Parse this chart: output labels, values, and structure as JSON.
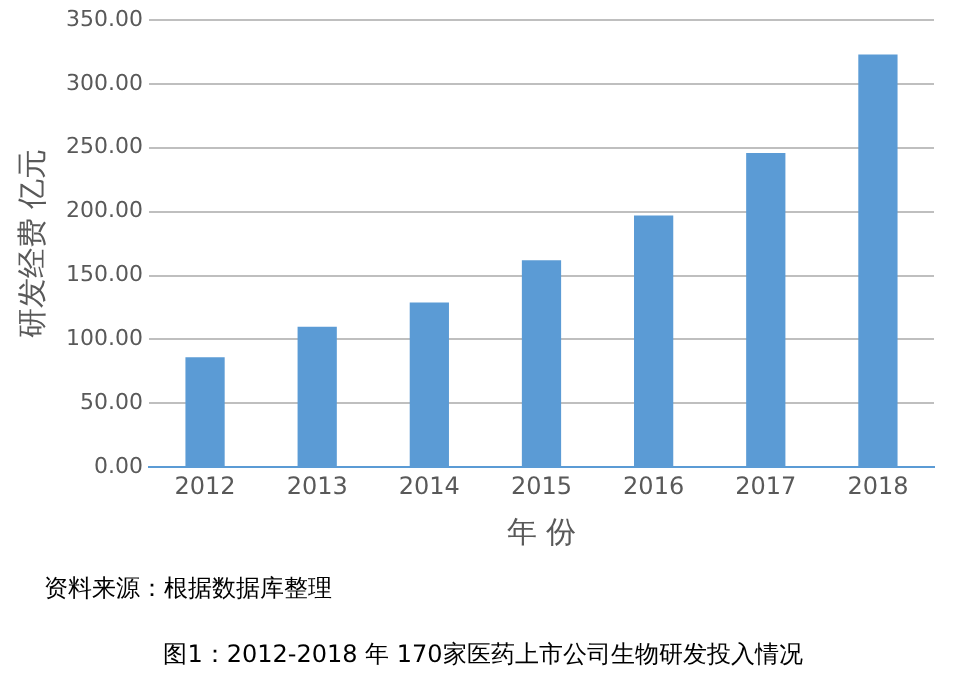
{
  "chart_data": {
    "type": "bar",
    "title": "图1：2012-2018 年 170家医药上市公司生物研发投入情况",
    "xlabel": "年 份",
    "ylabel": "研发经费 亿元",
    "annotations": [
      "资料来源：根据数据库整理"
    ],
    "categories": [
      "2012",
      "2013",
      "2014",
      "2015",
      "2016",
      "2017",
      "2018"
    ],
    "values": [
      86,
      110,
      129,
      162,
      197,
      246,
      323
    ],
    "color": "#5b9bd5",
    "ylim": [
      0,
      350
    ],
    "yticks": [
      {
        "value": 0,
        "label": "0.00"
      },
      {
        "value": 50,
        "label": "50.00"
      },
      {
        "value": 100,
        "label": "100.00"
      },
      {
        "value": 150,
        "label": "150.00"
      },
      {
        "value": 200,
        "label": "200.00"
      },
      {
        "value": 250,
        "label": "250.00"
      },
      {
        "value": 300,
        "label": "300.00"
      },
      {
        "value": 350,
        "label": "350.00"
      }
    ],
    "grid": "y",
    "legend": false
  }
}
